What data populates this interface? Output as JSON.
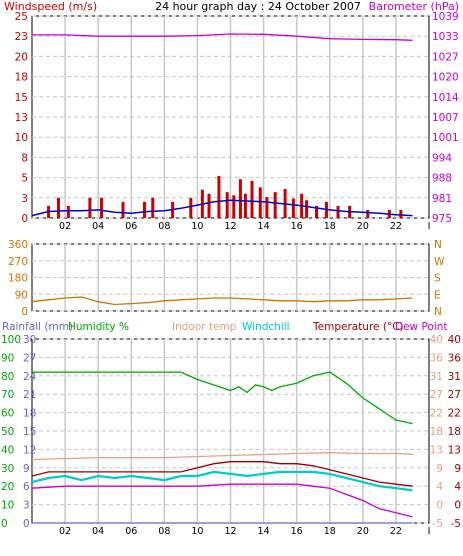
{
  "title": "24 hour graph day : 24 October 2007",
  "colors": {
    "background": "#ffffff",
    "plot_bg": "#ffffff",
    "grid": "#c8c8c8",
    "frame": "#000000",
    "windspeed": "#cc0000",
    "wind_avg": "#0000cc",
    "barometer": "#cc00cc",
    "wind_dir": "#cc7700",
    "dir_label": "#cc7700",
    "rainfall": "#6666cc",
    "humidity": "#00aa00",
    "indoor": "#e8a080",
    "windchill": "#00cccc",
    "temperature": "#990000",
    "dewpoint": "#cc00cc"
  },
  "chart_data": [
    {
      "type": "bar",
      "name_label": "Windspeed (m/s)",
      "right_label": "Barometer (hPa)",
      "x_ticks": [
        "02",
        "04",
        "06",
        "08",
        "10",
        "12",
        "14",
        "16",
        "18",
        "20",
        "22",
        "I"
      ],
      "y_left_ticks": [
        "25",
        "23",
        "20",
        "18",
        "15",
        "13",
        "10",
        "8",
        "5",
        "3",
        "0"
      ],
      "y_right_ticks": [
        "1039",
        "1033",
        "1027",
        "1020",
        "1014",
        "1007",
        "1001",
        "994",
        "988",
        "981",
        "975"
      ],
      "ylim_left": [
        0,
        25
      ],
      "ylim_right": [
        975,
        1039
      ],
      "series": [
        {
          "name": "Windspeed",
          "x": [
            1.0,
            1.6,
            2.2,
            3.5,
            4.2,
            5.5,
            6.8,
            7.3,
            8.5,
            9.6,
            10.3,
            10.7,
            11.3,
            11.8,
            12.2,
            12.6,
            12.9,
            13.3,
            13.8,
            14.2,
            14.7,
            15.3,
            15.8,
            16.3,
            16.6,
            17.2,
            17.8,
            18.5,
            19.2,
            20.3,
            21.6,
            22.3
          ],
          "values": [
            1.5,
            2.5,
            1.5,
            2.5,
            2.5,
            2.0,
            2.0,
            2.5,
            2.0,
            2.5,
            3.5,
            3.0,
            5.2,
            3.2,
            2.8,
            4.8,
            3.0,
            4.6,
            3.8,
            2.6,
            3.2,
            3.6,
            2.4,
            3.0,
            2.2,
            1.5,
            2.0,
            1.5,
            1.5,
            1.0,
            1.0,
            1.0
          ]
        },
        {
          "name": "Wind average",
          "x": [
            0,
            1,
            2,
            3,
            4,
            5,
            6,
            7,
            8,
            9,
            10,
            11,
            12,
            13,
            14,
            15,
            16,
            17,
            18,
            19,
            20,
            21,
            22,
            23
          ],
          "values": [
            0.3,
            0.8,
            0.9,
            0.9,
            1.0,
            0.7,
            0.6,
            0.8,
            0.9,
            1.2,
            1.6,
            2.0,
            2.2,
            2.1,
            2.0,
            1.8,
            1.6,
            1.3,
            1.0,
            0.8,
            0.7,
            0.6,
            0.4,
            0.3
          ]
        },
        {
          "name": "Barometer",
          "x": [
            0,
            2,
            4,
            6,
            8,
            10,
            12,
            14,
            16,
            18,
            20,
            22,
            23
          ],
          "values": [
            1033.0,
            1033.0,
            1032.6,
            1032.6,
            1032.6,
            1032.8,
            1033.3,
            1033.2,
            1032.6,
            1031.8,
            1031.6,
            1031.5,
            1031.3
          ]
        }
      ]
    },
    {
      "type": "line",
      "y_left_ticks": [
        "360",
        "270",
        "180",
        "90",
        "0"
      ],
      "y_right_ticks": [
        "N",
        "W",
        "S",
        "E",
        "N"
      ],
      "ylim": [
        0,
        360
      ],
      "series": [
        {
          "name": "Wind direction",
          "x": [
            0,
            1,
            2,
            3,
            4,
            5,
            6,
            7,
            8,
            9,
            10,
            11,
            12,
            13,
            14,
            15,
            16,
            17,
            18,
            19,
            20,
            21,
            22,
            23
          ],
          "values": [
            50,
            60,
            70,
            75,
            50,
            35,
            40,
            45,
            55,
            60,
            65,
            70,
            70,
            65,
            60,
            55,
            55,
            50,
            55,
            55,
            60,
            60,
            65,
            70
          ]
        }
      ]
    },
    {
      "type": "line",
      "labels": [
        "Rainfall (mm)",
        "Humidity %",
        "Indoor temp",
        "Windchill",
        "Temperature (°C)",
        "Dew Point"
      ],
      "y_rain_ticks": [
        "30",
        "27",
        "24",
        "21",
        "18",
        "15",
        "12",
        "9",
        "6",
        "3",
        "0"
      ],
      "y_hum_ticks": [
        "100",
        "90",
        "80",
        "70",
        "60",
        "50",
        "40",
        "30",
        "20",
        "10",
        "0"
      ],
      "y_r1_ticks": [
        "40",
        "36",
        "31",
        "27",
        "22",
        "18",
        "13",
        "9",
        "4",
        "0",
        "-5"
      ],
      "y_r2_ticks": [
        "40",
        "36",
        "31",
        "27",
        "22",
        "18",
        "13",
        "9",
        "4",
        "0",
        "-5"
      ],
      "ylim_humidity": [
        0,
        100
      ],
      "ylim_temp": [
        -5,
        40
      ],
      "series": [
        {
          "name": "Humidity",
          "x": [
            0,
            2,
            4,
            6,
            8,
            9,
            10,
            11,
            12,
            12.5,
            13,
            13.5,
            14,
            14.5,
            15,
            16,
            17,
            18,
            19,
            20,
            21,
            22,
            23
          ],
          "values": [
            82,
            82,
            82,
            82,
            82,
            82,
            78,
            75,
            72,
            74,
            71,
            75,
            74,
            72,
            74,
            76,
            80,
            82,
            76,
            68,
            62,
            56,
            54
          ]
        },
        {
          "name": "Indoor temp",
          "x": [
            0,
            4,
            8,
            12,
            16,
            18,
            20,
            22,
            23
          ],
          "values": [
            10.5,
            11.0,
            11.0,
            11.5,
            12.0,
            12.2,
            12.0,
            12.0,
            11.8
          ]
        },
        {
          "name": "Windchill",
          "x": [
            0,
            1,
            2,
            3,
            4,
            5,
            6,
            7,
            8,
            9,
            10,
            11,
            12,
            13,
            14,
            15,
            16,
            17,
            18,
            19,
            20,
            21,
            22,
            23
          ],
          "values": [
            5.0,
            6.0,
            6.5,
            5.5,
            6.5,
            6.0,
            6.5,
            6.0,
            5.5,
            6.5,
            6.5,
            7.5,
            7.0,
            6.5,
            7.0,
            7.5,
            7.5,
            7.5,
            7.0,
            6.0,
            5.0,
            4.0,
            3.5,
            3.0
          ]
        },
        {
          "name": "Temperature",
          "x": [
            0,
            1,
            2,
            3,
            4,
            5,
            6,
            7,
            8,
            9,
            10,
            11,
            12,
            13,
            14,
            15,
            16,
            17,
            18,
            19,
            20,
            21,
            22,
            23
          ],
          "values": [
            6.5,
            7.5,
            7.5,
            7.5,
            7.5,
            7.5,
            7.5,
            7.5,
            7.5,
            7.5,
            8.5,
            9.5,
            10.0,
            10.0,
            10.0,
            9.5,
            9.5,
            9.0,
            8.0,
            7.0,
            6.0,
            5.0,
            4.5,
            4.0
          ]
        },
        {
          "name": "Dew Point",
          "x": [
            0,
            2,
            4,
            6,
            8,
            10,
            12,
            14,
            16,
            17,
            18,
            19,
            20,
            21,
            22,
            23
          ],
          "values": [
            3.5,
            4.0,
            4.0,
            4.0,
            4.0,
            4.0,
            4.5,
            4.5,
            4.5,
            4.0,
            3.5,
            2.0,
            0.5,
            -1.5,
            -2.5,
            -3.5
          ]
        },
        {
          "name": "Rainfall",
          "x": [
            0,
            23
          ],
          "values": [
            0,
            0
          ]
        }
      ]
    }
  ]
}
